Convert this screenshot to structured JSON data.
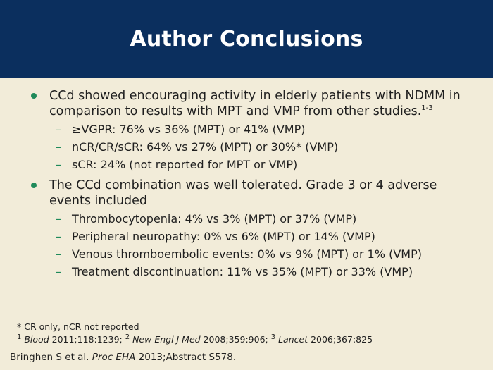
{
  "slide": {
    "title": "Author Conclusions",
    "colors": {
      "header_bg": "#0b2f5e",
      "background": "#f2ecd9",
      "bullet": "#1f8a5a"
    }
  },
  "bullets": [
    {
      "text": "CCd showed encouraging activity in elderly patients with NDMM in comparison to results with MPT and VMP from other studies.",
      "sup": "1-3",
      "subs": [
        "≥VGPR: 76% vs 36% (MPT) or 41% (VMP)",
        "nCR/CR/sCR: 64% vs 27% (MPT) or 30%* (VMP)",
        "sCR: 24% (not reported for MPT or VMP)"
      ]
    },
    {
      "text": "The CCd combination was well tolerated. Grade 3 or 4 adverse events included",
      "subs": [
        "Thrombocytopenia: 4% vs 3% (MPT) or 37% (VMP)",
        "Peripheral neuropathy: 0% vs 6% (MPT) or 14% (VMP)",
        "Venous thromboembolic events: 0% vs 9% (MPT) or 1% (VMP)",
        "Treatment discontinuation: 11% vs 35% (MPT) or 33% (VMP)"
      ]
    }
  ],
  "footnotes": {
    "cr_note": "* CR only, nCR not reported",
    "refs": [
      {
        "num": "1",
        "journal": "Blood",
        "cite": " 2011;118:1239; "
      },
      {
        "num": "2",
        "journal": "New Engl J Med",
        "cite": " 2008;359:906; "
      },
      {
        "num": "3",
        "journal": "Lancet",
        "cite": " 2006;367:825"
      }
    ]
  },
  "citation": {
    "authors": "Bringhen S et al. ",
    "journal": "Proc EHA",
    "rest": " 2013;Abstract S578."
  }
}
